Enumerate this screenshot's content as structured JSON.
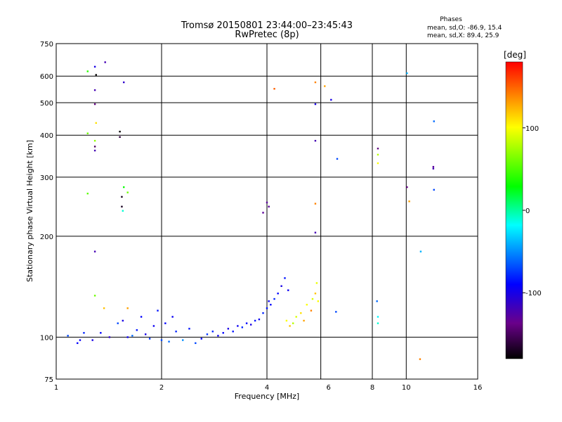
{
  "header": {
    "title_line1": "Tromsø 20150801 23:44:00–23:45:43",
    "title_line2": "RwPretec (8p)",
    "stats_title": "Phases",
    "stats_o": "mean, sd,O: -86.9, 15.4",
    "stats_x": "mean, sd,X:  89.4, 25.9"
  },
  "colorbar": {
    "label": "[deg]",
    "ticks": [
      {
        "label": "100",
        "value": 100
      },
      {
        "label": "0",
        "value": 0
      },
      {
        "label": "-100",
        "value": -100
      }
    ],
    "range": [
      -180,
      180
    ],
    "palette": [
      "#000000",
      "#6a008a",
      "#0000ff",
      "#00ffff",
      "#00ff00",
      "#ffff00",
      "#ff8c00",
      "#ff0000"
    ]
  },
  "chart_data": {
    "type": "scatter",
    "title": "Tromsø 20150801 23:44:00–23:45:43",
    "subtitle": "RwPretec (8p)",
    "xlabel": "Frequency [MHz]",
    "ylabel": "Stationary phase Virtual Height [km]",
    "xscale": "log",
    "yscale": "log",
    "xlim": [
      1,
      16
    ],
    "ylim": [
      75,
      750
    ],
    "grid": true,
    "xticks": [
      {
        "label": "1",
        "value": 1
      },
      {
        "label": "2",
        "value": 2
      },
      {
        "label": "4",
        "value": 4
      },
      {
        "label": "6",
        "value": 6
      },
      {
        "label": "8",
        "value": 8
      },
      {
        "label": "10",
        "value": 10
      },
      {
        "label": "16",
        "value": 16
      }
    ],
    "yticks": [
      {
        "label": "75",
        "value": 75
      },
      {
        "label": "100",
        "value": 100
      },
      {
        "label": "200",
        "value": 200
      },
      {
        "label": "300",
        "value": 300
      },
      {
        "label": "400",
        "value": 400
      },
      {
        "label": "500",
        "value": 500
      },
      {
        "label": "600",
        "value": 600
      },
      {
        "label": "750",
        "value": 750
      }
    ],
    "grid_x": [
      2,
      4,
      5.7,
      8,
      10
    ],
    "grid_y": [
      100,
      200,
      300,
      400,
      500,
      600
    ],
    "color_scale": {
      "label": "[deg]",
      "min": -180,
      "max": 180
    },
    "series": [
      {
        "points": [
          [
            1.08,
            101,
            -70
          ],
          [
            1.15,
            96,
            -90
          ],
          [
            1.17,
            98,
            -95
          ],
          [
            1.2,
            103,
            -80
          ],
          [
            1.27,
            98,
            -100
          ],
          [
            1.34,
            103,
            -90
          ],
          [
            1.42,
            100,
            -110
          ],
          [
            1.5,
            110,
            -70
          ],
          [
            1.55,
            112,
            -100
          ],
          [
            1.6,
            100,
            -95
          ],
          [
            1.65,
            101,
            -60
          ],
          [
            1.7,
            105,
            -85
          ],
          [
            1.75,
            115,
            -90
          ],
          [
            1.8,
            102,
            -100
          ],
          [
            1.85,
            99,
            -75
          ],
          [
            1.9,
            108,
            -95
          ],
          [
            1.95,
            120,
            -85
          ],
          [
            2.0,
            98,
            -70
          ],
          [
            2.05,
            110,
            -90
          ],
          [
            2.1,
            97,
            -60
          ],
          [
            2.15,
            115,
            -95
          ],
          [
            2.2,
            104,
            -80
          ],
          [
            2.3,
            98,
            -50
          ],
          [
            2.4,
            106,
            -85
          ],
          [
            2.5,
            96,
            -70
          ],
          [
            2.6,
            99,
            -90
          ],
          [
            2.7,
            102,
            -75
          ],
          [
            2.8,
            104,
            -80
          ],
          [
            2.9,
            101,
            -95
          ],
          [
            3.0,
            103,
            -90
          ],
          [
            3.1,
            106,
            -100
          ],
          [
            3.2,
            104,
            -85
          ],
          [
            3.3,
            108,
            -95
          ],
          [
            3.4,
            107,
            -80
          ],
          [
            3.5,
            110,
            -90
          ],
          [
            3.6,
            109,
            -100
          ],
          [
            3.7,
            112,
            -85
          ],
          [
            3.8,
            113,
            -95
          ],
          [
            3.9,
            118,
            -80
          ],
          [
            4.0,
            122,
            -85
          ],
          [
            4.05,
            128,
            -95
          ],
          [
            4.1,
            125,
            -90
          ],
          [
            4.2,
            130,
            -80
          ],
          [
            4.3,
            135,
            -90
          ],
          [
            4.4,
            142,
            -100
          ],
          [
            4.5,
            150,
            -85
          ],
          [
            4.6,
            138,
            -95
          ],
          [
            4.55,
            112,
            100
          ],
          [
            4.65,
            108,
            120
          ],
          [
            4.75,
            110,
            80
          ],
          [
            4.85,
            115,
            90
          ],
          [
            5.0,
            118,
            110
          ],
          [
            5.1,
            112,
            130
          ],
          [
            5.2,
            125,
            100
          ],
          [
            5.4,
            130,
            90
          ],
          [
            5.5,
            135,
            120
          ],
          [
            5.6,
            128,
            100
          ],
          [
            5.55,
            145,
            95
          ],
          [
            5.35,
            120,
            140
          ],
          [
            1.23,
            620,
            40
          ],
          [
            1.29,
            640,
            -100
          ],
          [
            1.38,
            660,
            -120
          ],
          [
            1.3,
            605,
            -180
          ],
          [
            1.29,
            545,
            -120
          ],
          [
            1.29,
            495,
            -140
          ],
          [
            1.56,
            575,
            -110
          ],
          [
            1.23,
            405,
            60
          ],
          [
            1.29,
            385,
            70
          ],
          [
            1.29,
            370,
            -150
          ],
          [
            1.29,
            360,
            -120
          ],
          [
            1.3,
            435,
            110
          ],
          [
            1.52,
            410,
            -180
          ],
          [
            1.52,
            395,
            -160
          ],
          [
            1.23,
            268,
            55
          ],
          [
            1.54,
            262,
            -170
          ],
          [
            1.54,
            245,
            -170
          ],
          [
            1.56,
            280,
            30
          ],
          [
            1.6,
            270,
            60
          ],
          [
            1.55,
            238,
            -10
          ],
          [
            1.29,
            180,
            -120
          ],
          [
            1.29,
            133,
            60
          ],
          [
            1.37,
            122,
            120
          ],
          [
            1.6,
            122,
            130
          ],
          [
            4.0,
            252,
            -130
          ],
          [
            4.05,
            245,
            -130
          ],
          [
            3.9,
            235,
            -130
          ],
          [
            4.2,
            550,
            150
          ],
          [
            5.5,
            575,
            140
          ],
          [
            5.5,
            495,
            -100
          ],
          [
            5.85,
            560,
            130
          ],
          [
            6.1,
            510,
            -100
          ],
          [
            5.5,
            385,
            -120
          ],
          [
            6.35,
            340,
            -70
          ],
          [
            8.3,
            365,
            -140
          ],
          [
            8.3,
            350,
            80
          ],
          [
            8.3,
            330,
            100
          ],
          [
            5.5,
            250,
            140
          ],
          [
            5.5,
            205,
            -120
          ],
          [
            6.3,
            119,
            -70
          ],
          [
            8.25,
            128,
            -60
          ],
          [
            8.3,
            115,
            -20
          ],
          [
            8.3,
            110,
            -10
          ],
          [
            10.05,
            612,
            -40
          ],
          [
            12.0,
            440,
            -60
          ],
          [
            11.95,
            322,
            -130
          ],
          [
            11.95,
            318,
            -120
          ],
          [
            10.05,
            280,
            -140
          ],
          [
            12.0,
            275,
            -70
          ],
          [
            10.2,
            254,
            130
          ],
          [
            11.0,
            180,
            -40
          ],
          [
            10.95,
            86,
            140
          ]
        ]
      }
    ]
  }
}
